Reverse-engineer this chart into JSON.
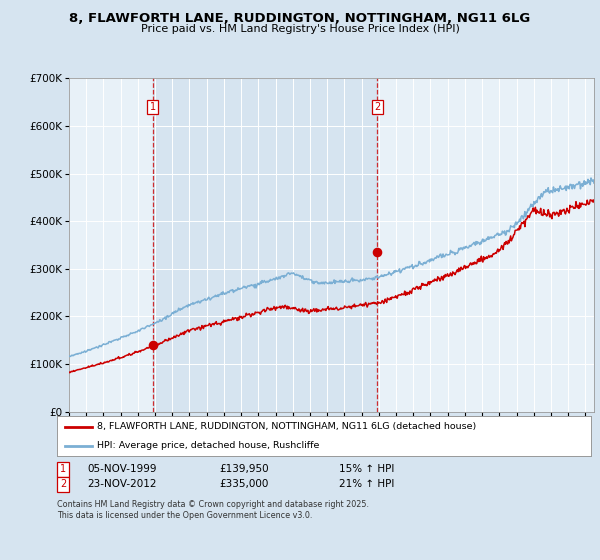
{
  "title_line1": "8, FLAWFORTH LANE, RUDDINGTON, NOTTINGHAM, NG11 6LG",
  "title_line2": "Price paid vs. HM Land Registry's House Price Index (HPI)",
  "bg_color": "#D6E4F0",
  "plot_bg_color": "#E8F1F8",
  "legend_line1": "8, FLAWFORTH LANE, RUDDINGTON, NOTTINGHAM, NG11 6LG (detached house)",
  "legend_line2": "HPI: Average price, detached house, Rushcliffe",
  "red_color": "#CC0000",
  "blue_color": "#7BAFD4",
  "purchase1_year": 1999.87,
  "purchase1_value": 139950,
  "purchase2_year": 2012.9,
  "purchase2_value": 335000,
  "annotation1_date": "05-NOV-1999",
  "annotation1_price": "£139,950",
  "annotation1_hpi": "15% ↑ HPI",
  "annotation2_date": "23-NOV-2012",
  "annotation2_price": "£335,000",
  "annotation2_hpi": "21% ↑ HPI",
  "footnote": "Contains HM Land Registry data © Crown copyright and database right 2025.\nThis data is licensed under the Open Government Licence v3.0.",
  "xmin": 1995,
  "xmax": 2025.5,
  "ymin": 0,
  "ymax": 700000,
  "yticks": [
    0,
    100000,
    200000,
    300000,
    400000,
    500000,
    600000,
    700000
  ],
  "ytick_labels": [
    "£0",
    "£100K",
    "£200K",
    "£300K",
    "£400K",
    "£500K",
    "£600K",
    "£700K"
  ],
  "xticks": [
    1995,
    1996,
    1997,
    1998,
    1999,
    2000,
    2001,
    2002,
    2003,
    2004,
    2005,
    2006,
    2007,
    2008,
    2009,
    2010,
    2011,
    2012,
    2013,
    2014,
    2015,
    2016,
    2017,
    2018,
    2019,
    2020,
    2021,
    2022,
    2023,
    2024,
    2025
  ]
}
